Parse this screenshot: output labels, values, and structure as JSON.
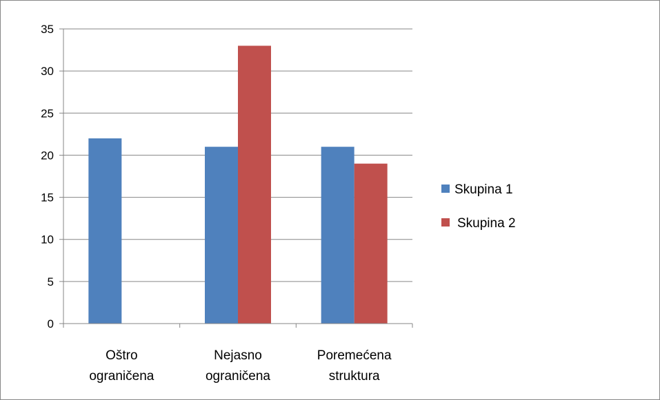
{
  "chart_data": {
    "type": "bar",
    "categories": [
      [
        "Oštro",
        "ograničena"
      ],
      [
        "Nejasno",
        "ograničena"
      ],
      [
        "Poremećena",
        "struktura"
      ]
    ],
    "series": [
      {
        "name": "Skupina 1",
        "values": [
          22,
          21,
          21
        ],
        "color": "#4f81bd"
      },
      {
        "name": "Skupina 2",
        "values": [
          0,
          33,
          19
        ],
        "color": "#c0504d"
      }
    ],
    "ylim": [
      0,
      35
    ],
    "yticks": [
      "0",
      "5",
      "10",
      "15",
      "20",
      "25",
      "30",
      "35"
    ],
    "ytick_values": [
      0,
      5,
      10,
      15,
      20,
      25,
      30,
      35
    ],
    "grid": true,
    "legend_position": "right",
    "title": "",
    "xlabel": "",
    "ylabel": ""
  }
}
